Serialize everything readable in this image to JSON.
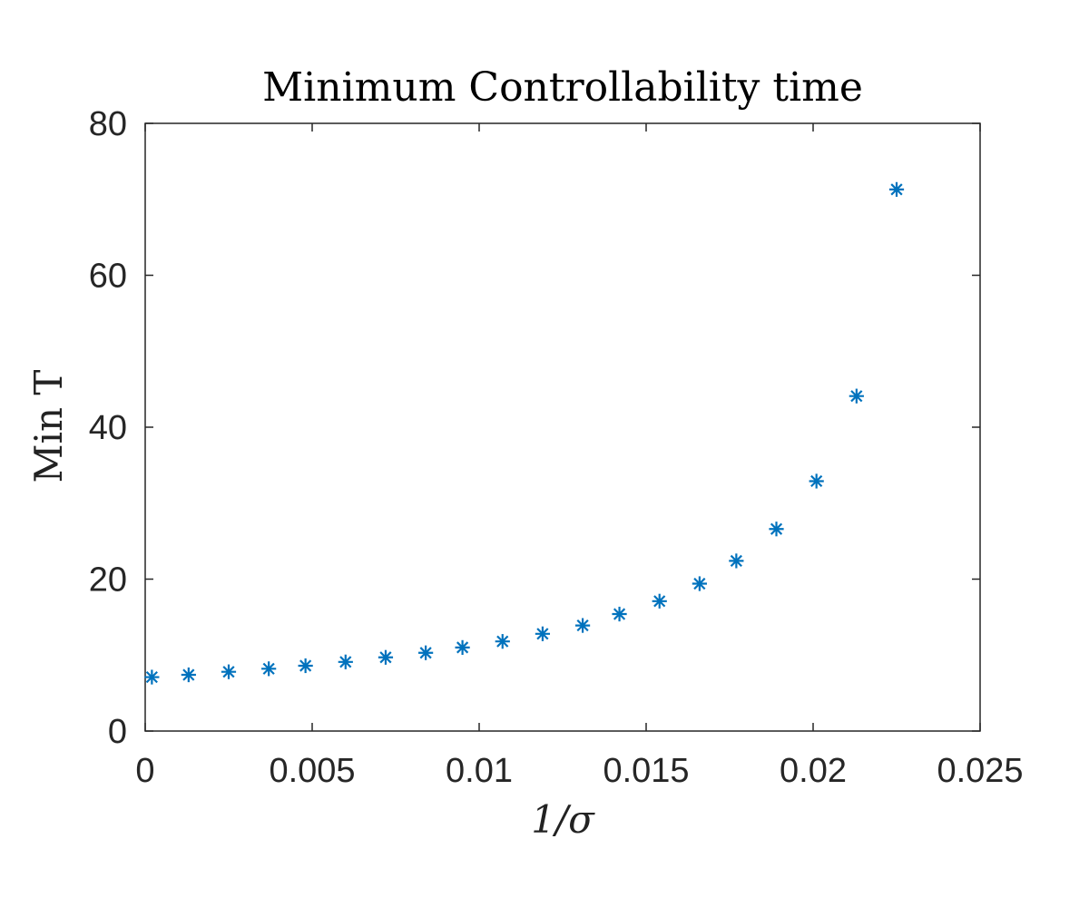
{
  "chart_data": {
    "type": "scatter",
    "title": "Minimum Controllability time",
    "xlabel": "1/σ",
    "ylabel": "Min T",
    "xlim": [
      0,
      0.025
    ],
    "ylim": [
      0,
      80
    ],
    "xticks": [
      0,
      0.005,
      0.01,
      0.015,
      0.02,
      0.025
    ],
    "xtick_labels": [
      "0",
      "0.005",
      "0.01",
      "0.015",
      "0.02",
      "0.025"
    ],
    "yticks": [
      0,
      20,
      40,
      60,
      80
    ],
    "ytick_labels": [
      "0",
      "20",
      "40",
      "60",
      "80"
    ],
    "grid": false,
    "marker": "asterisk",
    "color": "#0072BD",
    "series": [
      {
        "x": [
          0.0002,
          0.0013,
          0.0025,
          0.0037,
          0.0048,
          0.006,
          0.0072,
          0.0084,
          0.0095,
          0.0107,
          0.0119,
          0.0131,
          0.0142,
          0.0154,
          0.0166,
          0.0177,
          0.0189,
          0.0201,
          0.0213,
          0.0225
        ],
        "y": [
          7.1,
          7.4,
          7.8,
          8.2,
          8.6,
          9.1,
          9.7,
          10.3,
          11.0,
          11.8,
          12.8,
          13.9,
          15.4,
          17.1,
          19.4,
          22.4,
          26.6,
          32.9,
          44.1,
          71.3
        ]
      }
    ]
  }
}
